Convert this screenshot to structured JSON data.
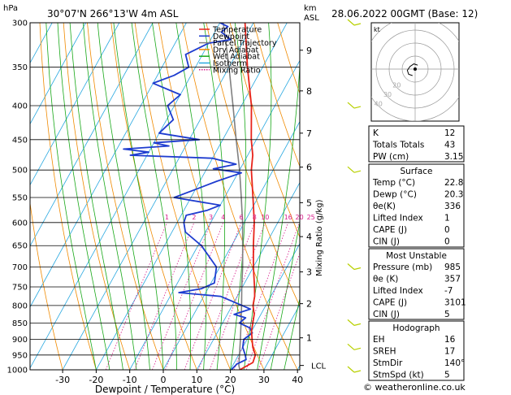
{
  "header": {
    "location": "30°07'N  266°13'W  4m  ASL",
    "datetime": "28.06.2022  00GMT  (Base: 12)",
    "hpa_label": "hPa",
    "km_label": "km",
    "asl_label": "ASL"
  },
  "chart_data": {
    "type": "line",
    "title": "",
    "xlabel": "Dewpoint / Temperature (°C)",
    "ylabel_right": "Mixing Ratio (g/kg)",
    "pressure_levels": [
      300,
      350,
      400,
      450,
      500,
      550,
      600,
      650,
      700,
      750,
      800,
      850,
      900,
      950,
      1000
    ],
    "x_ticks": [
      -30,
      -20,
      -10,
      0,
      10,
      20,
      30,
      40
    ],
    "xlim": [
      -35,
      40
    ],
    "km_ticks": [
      {
        "km": "9",
        "p": 330
      },
      {
        "km": "8",
        "p": 380
      },
      {
        "km": "7",
        "p": 440
      },
      {
        "km": "6",
        "p": 495
      },
      {
        "km": "5",
        "p": 560
      },
      {
        "km": "4",
        "p": 630
      },
      {
        "km": "3",
        "p": 712
      },
      {
        "km": "2",
        "p": 795
      },
      {
        "km": "1",
        "p": 895
      }
    ],
    "lcl": {
      "label": "LCL",
      "p": 985
    },
    "mixing_ratios": [
      "1",
      "2",
      "3",
      "4",
      "6",
      "8",
      "10",
      "16",
      "20",
      "25"
    ],
    "mixing_ratio_values": [
      1,
      2,
      3,
      4,
      6,
      8,
      10,
      16,
      20,
      25
    ],
    "legend": [
      "Temperature",
      "Dewpoint",
      "Parcel Trajectory",
      "Dry Adiabat",
      "Wet Adiabat",
      "Isotherm",
      "Mixing Ratio"
    ],
    "colors": {
      "temperature": "#e8231a",
      "dewpoint": "#1e3ccf",
      "parcel": "#808080",
      "dry_adiabat": "#f08a00",
      "wet_adiabat": "#18a818",
      "isotherm": "#28a8e0",
      "mixing_ratio": "#d81b8a"
    },
    "series": [
      {
        "name": "Temperature",
        "points": [
          [
            1000,
            22.8
          ],
          [
            975,
            25.5
          ],
          [
            950,
            25.0
          ],
          [
            925,
            23.0
          ],
          [
            900,
            21.5
          ],
          [
            875,
            20.0
          ],
          [
            850,
            19.0
          ],
          [
            825,
            18.0
          ],
          [
            800,
            16.2
          ],
          [
            775,
            15.2
          ],
          [
            750,
            13.6
          ],
          [
            700,
            10.0
          ],
          [
            650,
            6.5
          ],
          [
            600,
            3.0
          ],
          [
            550,
            -1.5
          ],
          [
            500,
            -6.5
          ],
          [
            475,
            -8.5
          ],
          [
            450,
            -11.5
          ],
          [
            400,
            -17.0
          ],
          [
            350,
            -24.5
          ],
          [
            300,
            -32.5
          ]
        ]
      },
      {
        "name": "Dewpoint",
        "points": [
          [
            1000,
            20.3
          ],
          [
            980,
            21.0
          ],
          [
            965,
            23.0
          ],
          [
            950,
            22.0
          ],
          [
            925,
            20.0
          ],
          [
            900,
            19.0
          ],
          [
            880,
            20.5
          ],
          [
            865,
            19.0
          ],
          [
            850,
            15.0
          ],
          [
            835,
            16.0
          ],
          [
            825,
            12.0
          ],
          [
            810,
            16.0
          ],
          [
            800,
            13.0
          ],
          [
            775,
            5.0
          ],
          [
            765,
            -8.0
          ],
          [
            755,
            -2.0
          ],
          [
            740,
            1.0
          ],
          [
            700,
            -1.0
          ],
          [
            650,
            -9.0
          ],
          [
            620,
            -16.0
          ],
          [
            600,
            -18.0
          ],
          [
            585,
            -18.5
          ],
          [
            575,
            -13.0
          ],
          [
            565,
            -10.0
          ],
          [
            550,
            -25.0
          ],
          [
            535,
            -20.0
          ],
          [
            520,
            -15.0
          ],
          [
            505,
            -9.0
          ],
          [
            498,
            -18.0
          ],
          [
            490,
            -12.0
          ],
          [
            480,
            -20.0
          ],
          [
            475,
            -45.0
          ],
          [
            470,
            -40.0
          ],
          [
            465,
            -48.0
          ],
          [
            460,
            -35.0
          ],
          [
            455,
            -40.0
          ],
          [
            450,
            -27.0
          ],
          [
            440,
            -40.0
          ],
          [
            420,
            -38.0
          ],
          [
            400,
            -42.0
          ],
          [
            385,
            -40.0
          ],
          [
            370,
            -50.0
          ],
          [
            360,
            -45.0
          ],
          [
            350,
            -42.0
          ],
          [
            335,
            -45.0
          ],
          [
            322,
            -40.0
          ],
          [
            318,
            -34.0
          ],
          [
            310,
            -38.0
          ],
          [
            304,
            -37.0
          ],
          [
            300,
            -40.0
          ]
        ]
      },
      {
        "name": "Parcel Trajectory",
        "points": [
          [
            1000,
            22.8
          ],
          [
            985,
            21.8
          ],
          [
            950,
            20.3
          ],
          [
            900,
            18.0
          ],
          [
            850,
            15.5
          ],
          [
            800,
            12.8
          ],
          [
            750,
            9.8
          ],
          [
            700,
            6.8
          ],
          [
            650,
            3.3
          ],
          [
            600,
            -0.5
          ],
          [
            550,
            -5.0
          ],
          [
            500,
            -10.0
          ],
          [
            450,
            -16.0
          ],
          [
            400,
            -22.5
          ],
          [
            350,
            -30.0
          ],
          [
            300,
            -39.0
          ]
        ]
      }
    ]
  },
  "hodograph": {
    "label": "kt",
    "rings": [
      "40",
      "30",
      "20",
      "10"
    ],
    "ring_values": [
      10,
      20,
      30,
      40
    ],
    "ring_label_values": [
      20,
      30,
      40
    ],
    "points": [
      [
        2,
        -3
      ],
      [
        -1,
        -4
      ],
      [
        -4,
        -2
      ],
      [
        -6,
        1
      ],
      [
        -5,
        4
      ],
      [
        -2,
        5
      ]
    ]
  },
  "indices": {
    "rows": [
      {
        "label": "K",
        "value": "12"
      },
      {
        "label": "Totals Totals",
        "value": "43"
      },
      {
        "label": "PW (cm)",
        "value": "3.15"
      }
    ]
  },
  "surface": {
    "title": "Surface",
    "rows": [
      {
        "label": "Temp (°C)",
        "value": "22.8"
      },
      {
        "label": "Dewp (°C)",
        "value": "20.3"
      },
      {
        "label": "θe(K)",
        "value": "336"
      },
      {
        "label": "Lifted Index",
        "value": "1"
      },
      {
        "label": "CAPE (J)",
        "value": "0"
      },
      {
        "label": "CIN (J)",
        "value": "0"
      }
    ]
  },
  "most_unstable": {
    "title": "Most Unstable",
    "rows": [
      {
        "label": "Pressure (mb)",
        "value": "985"
      },
      {
        "label": "θe (K)",
        "value": "357"
      },
      {
        "label": "Lifted Index",
        "value": "-7"
      },
      {
        "label": "CAPE (J)",
        "value": "3101"
      },
      {
        "label": "CIN (J)",
        "value": "5"
      }
    ]
  },
  "hodograph_table": {
    "title": "Hodograph",
    "rows": [
      {
        "label": "EH",
        "value": "16"
      },
      {
        "label": "SREH",
        "value": "17"
      },
      {
        "label": "StmDir",
        "value": "140°"
      },
      {
        "label": "StmSpd (kt)",
        "value": "5"
      }
    ]
  },
  "footer": {
    "text": "© weatheronline.co.uk"
  }
}
